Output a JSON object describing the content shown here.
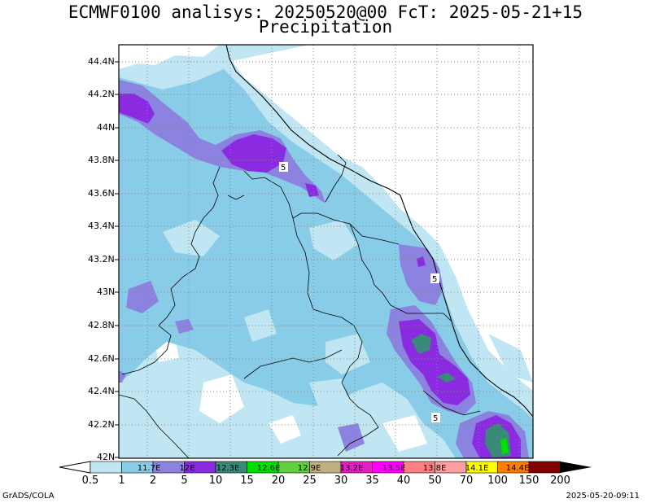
{
  "title": {
    "line1": "ECMWF0100 analisys: 20250520@00 FcT: 2025-05-21+15",
    "line2": "Precipitation"
  },
  "axes": {
    "y_ticks": [
      "44.4N",
      "44.2N",
      "44N",
      "43.8N",
      "43.6N",
      "43.4N",
      "43.2N",
      "43N",
      "42.8N",
      "42.6N",
      "42.4N",
      "42.2N",
      "42N"
    ],
    "lat_range": [
      42.0,
      44.45
    ]
  },
  "contour_labels": [
    "5",
    "5",
    "5"
  ],
  "colorbar": {
    "values": [
      "0.5",
      "1",
      "2",
      "5",
      "10",
      "15",
      "20",
      "25",
      "30",
      "35",
      "40",
      "50",
      "70",
      "100",
      "150",
      "200"
    ],
    "box_labels": [
      "11.7E",
      "12E",
      "12.3E",
      "12.6E",
      "12.9E",
      "13.2E",
      "13.5E",
      "13.8E",
      "14.1E",
      "14.4E"
    ],
    "colors": [
      "#bfe6f2",
      "#88cce8",
      "#8c82e0",
      "#8a2be2",
      "#3a8a7a",
      "#00e000",
      "#60d040",
      "#c0b080",
      "#e020c0",
      "#ff00ff",
      "#ff8080",
      "#ffa0a0",
      "#ffff00",
      "#ff8000",
      "#ff2000",
      "#800000"
    ]
  },
  "footer": {
    "left": "GrADS/COLA",
    "right": "2025-05-20-09:11"
  }
}
